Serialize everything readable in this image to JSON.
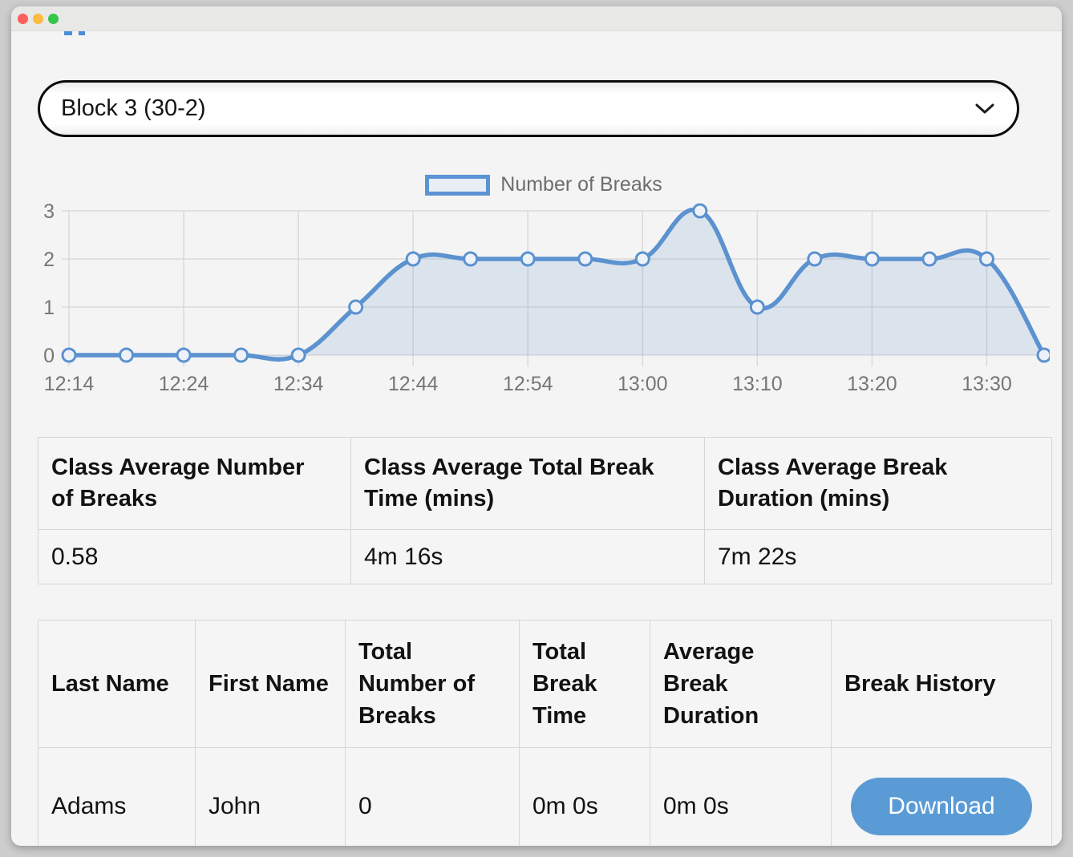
{
  "window": {
    "controls": [
      {
        "icon": "close-window-icon",
        "color": "#fc605c"
      },
      {
        "icon": "minimize-window-icon",
        "color": "#fcbb40"
      },
      {
        "icon": "zoom-window-icon",
        "color": "#34c648"
      }
    ]
  },
  "class_selector": {
    "value": "Block 3 (30-2)",
    "icon": "chevron-down-icon"
  },
  "chart_data": {
    "type": "line",
    "title": "",
    "series": [
      {
        "name": "Number of Breaks",
        "values": [
          0,
          0,
          0,
          0,
          0,
          1,
          2,
          2,
          2,
          2,
          2,
          3,
          1,
          2,
          2,
          2,
          2,
          0
        ]
      }
    ],
    "x_tick_labels": [
      "12:14",
      "12:24",
      "12:34",
      "12:44",
      "12:54",
      "13:00",
      "13:10",
      "13:20",
      "13:30"
    ],
    "x_tick_every": 2,
    "y_ticks": [
      0,
      1,
      2,
      3
    ],
    "ylim": [
      0,
      3
    ],
    "xlabel": "",
    "ylabel": "",
    "grid": true,
    "legend_position": "top",
    "smooth": true,
    "point_style": "open-circle",
    "line_color": "#5b92cf",
    "fill_color": "rgba(91,146,207,0.16)",
    "point_fill": "#eef2f8",
    "grid_color": "#d9d9d9",
    "tick_color": "#767676"
  },
  "summary_table": {
    "columns": [
      {
        "header": "Class Average Number of Breaks",
        "value": "0.58"
      },
      {
        "header": "Class Average Total Break Time (mins)",
        "value": "4m 16s"
      },
      {
        "header": "Class Average Break Duration (mins)",
        "value": "7m 22s"
      }
    ]
  },
  "students_table": {
    "headers": [
      "Last Name",
      "First Name",
      "Total Number of Breaks",
      "Total Break Time",
      "Average Break Duration",
      "Break History"
    ],
    "rows": [
      {
        "last_name": "Adams",
        "first_name": "John",
        "total_breaks": "0",
        "total_break_time": "0m 0s",
        "average_break_duration": "0m 0s",
        "action_label": "Download"
      }
    ]
  },
  "colors": {
    "accent_blue": "#5b9bd5",
    "page_background": "#f4f4f4",
    "outer_background": "#cdcdcd",
    "titlebar": "#e8e8e7",
    "table_border": "#d6d6d6",
    "text": "#121212",
    "muted_text": "#6d6d6d"
  }
}
